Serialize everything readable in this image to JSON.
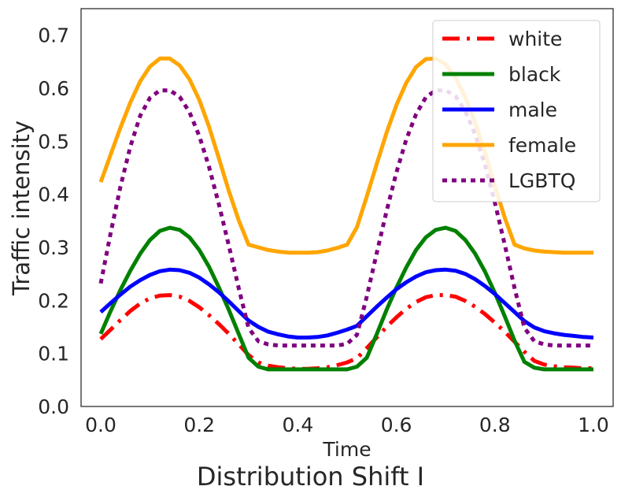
{
  "caption": "Distribution Shift I",
  "chart_data": {
    "type": "line",
    "xlabel": "Time",
    "ylabel": "Traffic intensity",
    "xlim": [
      -0.04,
      1.04
    ],
    "ylim": [
      0.0,
      0.75
    ],
    "xticks": [
      "0.0",
      "0.2",
      "0.4",
      "0.6",
      "0.8",
      "1.0"
    ],
    "yticks": [
      "0.0",
      "0.1",
      "0.2",
      "0.3",
      "0.4",
      "0.5",
      "0.6",
      "0.7"
    ],
    "grid": false,
    "legend_position": "top-right",
    "x": [
      0.0,
      0.02,
      0.04,
      0.06,
      0.08,
      0.1,
      0.12,
      0.14,
      0.16,
      0.18,
      0.2,
      0.22,
      0.24,
      0.26,
      0.28,
      0.3,
      0.32,
      0.34,
      0.36,
      0.38,
      0.4,
      0.42,
      0.44,
      0.46,
      0.48,
      0.5,
      0.52,
      0.54,
      0.56,
      0.58,
      0.6,
      0.62,
      0.64,
      0.66,
      0.68,
      0.7,
      0.72,
      0.74,
      0.76,
      0.78,
      0.8,
      0.82,
      0.84,
      0.86,
      0.88,
      0.9,
      0.92,
      0.94,
      0.96,
      0.98,
      1.0
    ],
    "series": [
      {
        "name": "white",
        "color": "#ff0000",
        "dash": "dashdot",
        "values": [
          0.127,
          0.145,
          0.163,
          0.18,
          0.194,
          0.204,
          0.209,
          0.21,
          0.207,
          0.199,
          0.187,
          0.172,
          0.155,
          0.137,
          0.117,
          0.097,
          0.083,
          0.077,
          0.074,
          0.072,
          0.071,
          0.071,
          0.072,
          0.074,
          0.078,
          0.083,
          0.091,
          0.11,
          0.13,
          0.15,
          0.168,
          0.184,
          0.197,
          0.206,
          0.21,
          0.21,
          0.207,
          0.199,
          0.188,
          0.174,
          0.158,
          0.141,
          0.122,
          0.103,
          0.086,
          0.079,
          0.076,
          0.074,
          0.073,
          0.072,
          0.072
        ]
      },
      {
        "name": "black",
        "color": "#008000",
        "dash": "solid",
        "values": [
          0.137,
          0.18,
          0.22,
          0.256,
          0.288,
          0.314,
          0.331,
          0.337,
          0.333,
          0.319,
          0.295,
          0.263,
          0.224,
          0.182,
          0.137,
          0.092,
          0.075,
          0.07,
          0.07,
          0.07,
          0.07,
          0.07,
          0.07,
          0.07,
          0.07,
          0.07,
          0.075,
          0.092,
          0.136,
          0.182,
          0.224,
          0.262,
          0.295,
          0.319,
          0.333,
          0.337,
          0.331,
          0.314,
          0.288,
          0.254,
          0.214,
          0.17,
          0.124,
          0.084,
          0.073,
          0.07,
          0.07,
          0.07,
          0.07,
          0.07,
          0.07
        ]
      },
      {
        "name": "male",
        "color": "#0000ff",
        "dash": "solid",
        "values": [
          0.178,
          0.195,
          0.211,
          0.226,
          0.238,
          0.248,
          0.255,
          0.258,
          0.257,
          0.252,
          0.243,
          0.23,
          0.215,
          0.198,
          0.18,
          0.162,
          0.15,
          0.141,
          0.136,
          0.132,
          0.13,
          0.13,
          0.131,
          0.134,
          0.139,
          0.145,
          0.152,
          0.17,
          0.188,
          0.205,
          0.221,
          0.234,
          0.245,
          0.253,
          0.257,
          0.258,
          0.256,
          0.25,
          0.24,
          0.227,
          0.212,
          0.195,
          0.178,
          0.161,
          0.149,
          0.142,
          0.138,
          0.135,
          0.133,
          0.131,
          0.13
        ]
      },
      {
        "name": "female",
        "color": "#ffa500",
        "dash": "solid",
        "values": [
          0.423,
          0.475,
          0.526,
          0.573,
          0.613,
          0.641,
          0.656,
          0.656,
          0.643,
          0.617,
          0.578,
          0.527,
          0.467,
          0.406,
          0.351,
          0.305,
          0.3,
          0.295,
          0.292,
          0.29,
          0.29,
          0.29,
          0.291,
          0.294,
          0.299,
          0.305,
          0.338,
          0.396,
          0.457,
          0.516,
          0.568,
          0.61,
          0.64,
          0.655,
          0.656,
          0.645,
          0.62,
          0.583,
          0.535,
          0.478,
          0.415,
          0.356,
          0.305,
          0.298,
          0.294,
          0.292,
          0.291,
          0.29,
          0.29,
          0.29,
          0.29
        ]
      },
      {
        "name": "LGBTQ",
        "color": "#800080",
        "dash": "dotted",
        "values": [
          0.232,
          0.327,
          0.415,
          0.49,
          0.548,
          0.582,
          0.596,
          0.596,
          0.584,
          0.555,
          0.51,
          0.451,
          0.38,
          0.303,
          0.223,
          0.148,
          0.123,
          0.117,
          0.115,
          0.115,
          0.115,
          0.115,
          0.115,
          0.115,
          0.115,
          0.118,
          0.135,
          0.207,
          0.289,
          0.368,
          0.441,
          0.503,
          0.551,
          0.583,
          0.596,
          0.596,
          0.585,
          0.557,
          0.513,
          0.455,
          0.384,
          0.305,
          0.223,
          0.148,
          0.123,
          0.117,
          0.115,
          0.115,
          0.115,
          0.115,
          0.115
        ]
      }
    ]
  }
}
